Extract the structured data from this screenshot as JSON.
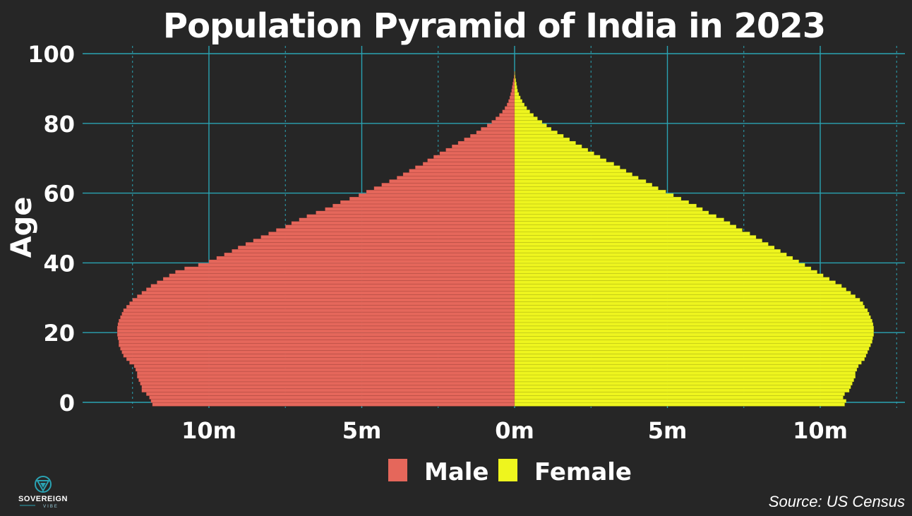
{
  "colors": {
    "background": "#262626",
    "grid": "#2aa3b3",
    "male": "#e5675b",
    "female": "#eef51e",
    "text": "#ffffff"
  },
  "logo": {
    "name": "SOVEREIGN",
    "tagline": "VIBE",
    "icon": "sovereign-triangle-logo-icon"
  },
  "source": "Source: US Census",
  "chart_data": {
    "type": "bar",
    "orientation": "horizontal-diverging",
    "title": "Population Pyramid of India in 2023",
    "xlabel": "",
    "ylabel": "Age",
    "xlim": [
      -13,
      13
    ],
    "ylim": [
      0,
      100
    ],
    "x_unit": "millions",
    "x_ticks": [
      -10,
      -5,
      0,
      5,
      10
    ],
    "x_tick_labels": [
      "10m",
      "5m",
      "0m",
      "5m",
      "10m"
    ],
    "y_ticks": [
      0,
      20,
      40,
      60,
      80,
      100
    ],
    "y_tick_labels": [
      "0",
      "20",
      "40",
      "60",
      "80",
      "100"
    ],
    "grid": true,
    "legend_position": "bottom",
    "legend": [
      "Male",
      "Female"
    ],
    "ages": [
      0,
      1,
      2,
      3,
      4,
      5,
      6,
      7,
      8,
      9,
      10,
      11,
      12,
      13,
      14,
      15,
      16,
      17,
      18,
      19,
      20,
      21,
      22,
      23,
      24,
      25,
      26,
      27,
      28,
      29,
      30,
      31,
      32,
      33,
      34,
      35,
      36,
      37,
      38,
      39,
      40,
      41,
      42,
      43,
      44,
      45,
      46,
      47,
      48,
      49,
      50,
      51,
      52,
      53,
      54,
      55,
      56,
      57,
      58,
      59,
      60,
      61,
      62,
      63,
      64,
      65,
      66,
      67,
      68,
      69,
      70,
      71,
      72,
      73,
      74,
      75,
      76,
      77,
      78,
      79,
      80,
      81,
      82,
      83,
      84,
      85,
      86,
      87,
      88,
      89,
      90,
      91,
      92,
      93,
      94,
      95
    ],
    "series": [
      {
        "name": "Male",
        "values": [
          11.85,
          11.9,
          11.95,
          12.05,
          12.2,
          12.2,
          12.25,
          12.3,
          12.35,
          12.35,
          12.4,
          12.45,
          12.6,
          12.7,
          12.8,
          12.85,
          12.9,
          12.95,
          12.95,
          12.98,
          13.0,
          13.0,
          13.0,
          12.98,
          12.95,
          12.9,
          12.85,
          12.8,
          12.7,
          12.6,
          12.5,
          12.35,
          12.2,
          12.05,
          11.9,
          11.7,
          11.5,
          11.3,
          11.1,
          10.8,
          10.35,
          10.0,
          9.75,
          9.5,
          9.25,
          9.05,
          8.8,
          8.55,
          8.3,
          8.05,
          7.8,
          7.5,
          7.3,
          7.05,
          6.8,
          6.5,
          6.2,
          5.95,
          5.7,
          5.4,
          5.1,
          4.85,
          4.6,
          4.35,
          4.1,
          3.85,
          3.65,
          3.45,
          3.25,
          3.0,
          2.85,
          2.65,
          2.45,
          2.25,
          2.05,
          1.85,
          1.65,
          1.45,
          1.25,
          1.1,
          0.9,
          0.75,
          0.62,
          0.5,
          0.4,
          0.32,
          0.25,
          0.2,
          0.16,
          0.13,
          0.1,
          0.08,
          0.06,
          0.04,
          0.02,
          0.01
        ]
      },
      {
        "name": "Female",
        "values": [
          10.8,
          10.85,
          10.75,
          10.8,
          10.95,
          11.0,
          11.05,
          11.1,
          11.15,
          11.15,
          11.2,
          11.25,
          11.35,
          11.45,
          11.5,
          11.55,
          11.6,
          11.65,
          11.7,
          11.72,
          11.75,
          11.75,
          11.75,
          11.73,
          11.7,
          11.65,
          11.6,
          11.55,
          11.45,
          11.4,
          11.3,
          11.15,
          11.0,
          10.85,
          10.7,
          10.5,
          10.3,
          10.1,
          9.9,
          9.7,
          9.5,
          9.3,
          9.1,
          8.9,
          8.7,
          8.5,
          8.3,
          8.1,
          7.9,
          7.7,
          7.45,
          7.25,
          7.05,
          6.85,
          6.6,
          6.35,
          6.15,
          5.95,
          5.7,
          5.45,
          5.2,
          4.95,
          4.7,
          4.5,
          4.3,
          4.05,
          3.85,
          3.65,
          3.45,
          3.25,
          3.0,
          2.8,
          2.6,
          2.4,
          2.2,
          2.0,
          1.8,
          1.6,
          1.4,
          1.2,
          1.05,
          0.9,
          0.75,
          0.62,
          0.5,
          0.4,
          0.32,
          0.25,
          0.19,
          0.14,
          0.1,
          0.08,
          0.06,
          0.04,
          0.02,
          0.01
        ]
      }
    ]
  }
}
